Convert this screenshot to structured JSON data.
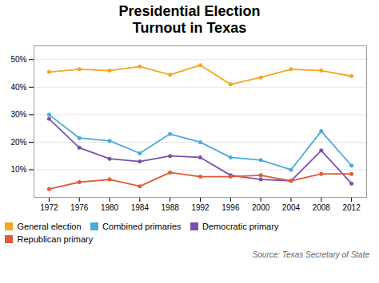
{
  "chart_data": {
    "type": "line",
    "title": "Presidential Election\nTurnout in Texas",
    "x": [
      1972,
      1976,
      1980,
      1984,
      1988,
      1992,
      1996,
      2000,
      2004,
      2008,
      2012
    ],
    "series": [
      {
        "name": "General election",
        "color": "#F5A623",
        "values": [
          45.5,
          46.5,
          46.0,
          47.5,
          44.5,
          48.0,
          41.0,
          43.5,
          46.5,
          46.0,
          44.0
        ]
      },
      {
        "name": "Combined primaries",
        "color": "#4AABDB",
        "values": [
          30.0,
          21.5,
          20.5,
          16.0,
          23.0,
          20.0,
          14.5,
          13.5,
          10.0,
          24.0,
          11.5
        ]
      },
      {
        "name": "Democratic primary",
        "color": "#7B52AB",
        "values": [
          28.5,
          18.0,
          14.0,
          13.0,
          15.0,
          14.5,
          8.0,
          6.5,
          6.0,
          17.0,
          5.0
        ]
      },
      {
        "name": "Republican primary",
        "color": "#E05A3A",
        "values": [
          3.0,
          5.5,
          6.5,
          4.0,
          9.0,
          7.5,
          7.5,
          8.0,
          6.0,
          8.5,
          8.5
        ]
      }
    ],
    "xlim": [
      1970,
      2014
    ],
    "xticks": [
      1972,
      1976,
      1980,
      1984,
      1988,
      1992,
      1996,
      2000,
      2004,
      2008,
      2012
    ],
    "ylim": [
      0,
      55
    ],
    "yticks": [
      {
        "value": 10,
        "label": "10%"
      },
      {
        "value": 20,
        "label": "20%"
      },
      {
        "value": 30,
        "label": "30%"
      },
      {
        "value": 40,
        "label": "40%"
      },
      {
        "value": 50,
        "label": "50%"
      }
    ],
    "grid": true,
    "legend": "bottom",
    "marker": "circle",
    "annotations": [
      "Source: Texas Secretary of State"
    ]
  }
}
